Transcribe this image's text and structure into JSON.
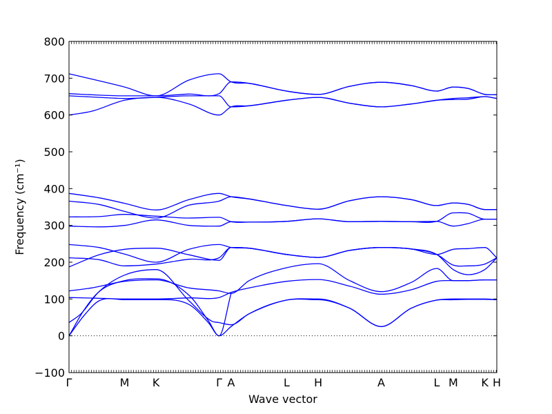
{
  "chart_data": {
    "type": "line",
    "title": "",
    "xlabel": "Wave vector",
    "ylabel": "Frequency (cm⁻¹)",
    "ylim": [
      -100,
      800
    ],
    "yticks": [
      -100,
      0,
      100,
      200,
      300,
      400,
      500,
      600,
      700,
      800
    ],
    "grid": false,
    "line_color": "#0000ff",
    "zero_line": {
      "y": 0,
      "style": "dotted",
      "color": "#000000"
    },
    "kpoints": [
      {
        "label": "Γ",
        "x": 0
      },
      {
        "label": "M",
        "x": 0.37
      },
      {
        "label": "K",
        "x": 0.58
      },
      {
        "label": "Γ",
        "x": 1.0
      },
      {
        "label": "A",
        "x": 1.08
      },
      {
        "label": "L",
        "x": 1.45
      },
      {
        "label": "H",
        "x": 1.66
      },
      {
        "label": "A",
        "x": 2.08
      },
      {
        "label": "L",
        "x": 2.45
      },
      {
        "label": "M",
        "x": 2.56
      },
      {
        "label": "K",
        "x": 2.77
      },
      {
        "label": "H",
        "x": 2.85
      }
    ],
    "series": [
      {
        "values": [
          [
            0,
            712
          ],
          [
            0.37,
            676
          ],
          [
            0.58,
            652
          ],
          [
            0.8,
            695
          ],
          [
            1.0,
            712
          ],
          [
            1.08,
            690
          ],
          [
            1.2,
            686
          ],
          [
            1.45,
            665
          ],
          [
            1.66,
            656
          ],
          [
            1.87,
            678
          ],
          [
            2.08,
            689
          ],
          [
            2.28,
            680
          ],
          [
            2.45,
            665
          ],
          [
            2.56,
            676
          ],
          [
            2.66,
            672
          ],
          [
            2.77,
            656
          ],
          [
            2.85,
            655
          ]
        ]
      },
      {
        "values": [
          [
            0,
            658
          ],
          [
            0.2,
            654
          ],
          [
            0.37,
            652
          ],
          [
            0.58,
            652
          ],
          [
            0.8,
            657
          ],
          [
            1.0,
            658
          ],
          [
            1.08,
            690
          ],
          [
            1.2,
            686
          ],
          [
            1.45,
            665
          ],
          [
            1.66,
            656
          ],
          [
            1.87,
            678
          ],
          [
            2.08,
            689
          ],
          [
            2.28,
            680
          ],
          [
            2.45,
            665
          ],
          [
            2.56,
            676
          ],
          [
            2.66,
            672
          ],
          [
            2.77,
            656
          ],
          [
            2.85,
            655
          ]
        ]
      },
      {
        "values": [
          [
            0,
            652
          ],
          [
            0.2,
            648
          ],
          [
            0.37,
            645
          ],
          [
            0.58,
            648
          ],
          [
            0.8,
            652
          ],
          [
            1.0,
            652
          ],
          [
            1.08,
            622
          ],
          [
            1.2,
            625
          ],
          [
            1.45,
            640
          ],
          [
            1.66,
            648
          ],
          [
            1.87,
            632
          ],
          [
            2.08,
            622
          ],
          [
            2.28,
            630
          ],
          [
            2.45,
            640
          ],
          [
            2.56,
            645
          ],
          [
            2.66,
            647
          ],
          [
            2.77,
            650
          ],
          [
            2.85,
            645
          ]
        ]
      },
      {
        "values": [
          [
            0,
            600
          ],
          [
            0.15,
            610
          ],
          [
            0.37,
            640
          ],
          [
            0.58,
            648
          ],
          [
            0.8,
            630
          ],
          [
            1.0,
            600
          ],
          [
            1.08,
            622
          ],
          [
            1.2,
            625
          ],
          [
            1.45,
            640
          ],
          [
            1.66,
            648
          ],
          [
            1.87,
            632
          ],
          [
            2.08,
            622
          ],
          [
            2.28,
            630
          ],
          [
            2.45,
            640
          ],
          [
            2.56,
            642
          ],
          [
            2.66,
            643
          ],
          [
            2.77,
            650
          ],
          [
            2.85,
            645
          ]
        ]
      },
      {
        "values": [
          [
            0,
            387
          ],
          [
            0.2,
            375
          ],
          [
            0.37,
            360
          ],
          [
            0.58,
            342
          ],
          [
            0.8,
            370
          ],
          [
            1.0,
            387
          ],
          [
            1.08,
            378
          ],
          [
            1.2,
            372
          ],
          [
            1.45,
            354
          ],
          [
            1.66,
            344
          ],
          [
            1.87,
            367
          ],
          [
            2.08,
            378
          ],
          [
            2.28,
            370
          ],
          [
            2.45,
            354
          ],
          [
            2.56,
            361
          ],
          [
            2.66,
            357
          ],
          [
            2.77,
            343
          ],
          [
            2.85,
            343
          ]
        ]
      },
      {
        "values": [
          [
            0,
            366
          ],
          [
            0.2,
            357
          ],
          [
            0.37,
            338
          ],
          [
            0.58,
            320
          ],
          [
            0.8,
            355
          ],
          [
            1.0,
            366
          ],
          [
            1.08,
            378
          ],
          [
            1.2,
            372
          ],
          [
            1.45,
            354
          ],
          [
            1.66,
            344
          ],
          [
            1.87,
            367
          ],
          [
            2.08,
            378
          ],
          [
            2.28,
            370
          ],
          [
            2.45,
            354
          ],
          [
            2.56,
            361
          ],
          [
            2.66,
            357
          ],
          [
            2.77,
            343
          ],
          [
            2.85,
            343
          ]
        ]
      },
      {
        "values": [
          [
            0,
            323
          ],
          [
            0.2,
            324
          ],
          [
            0.37,
            330
          ],
          [
            0.58,
            325
          ],
          [
            0.8,
            320
          ],
          [
            1.0,
            322
          ],
          [
            1.08,
            310
          ],
          [
            1.2,
            309
          ],
          [
            1.45,
            311
          ],
          [
            1.66,
            318
          ],
          [
            1.87,
            310
          ],
          [
            2.08,
            311
          ],
          [
            2.28,
            310
          ],
          [
            2.45,
            311
          ],
          [
            2.56,
            334
          ],
          [
            2.66,
            333
          ],
          [
            2.77,
            317
          ],
          [
            2.85,
            317
          ]
        ]
      },
      {
        "values": [
          [
            0,
            298
          ],
          [
            0.2,
            296
          ],
          [
            0.37,
            300
          ],
          [
            0.58,
            315
          ],
          [
            0.8,
            300
          ],
          [
            1.0,
            298
          ],
          [
            1.08,
            310
          ],
          [
            1.2,
            309
          ],
          [
            1.45,
            311
          ],
          [
            1.66,
            318
          ],
          [
            1.87,
            310
          ],
          [
            2.08,
            311
          ],
          [
            2.28,
            310
          ],
          [
            2.45,
            311
          ],
          [
            2.56,
            298
          ],
          [
            2.66,
            305
          ],
          [
            2.77,
            317
          ],
          [
            2.85,
            317
          ]
        ]
      },
      {
        "values": [
          [
            0,
            248
          ],
          [
            0.2,
            240
          ],
          [
            0.37,
            222
          ],
          [
            0.58,
            200
          ],
          [
            0.8,
            235
          ],
          [
            1.0,
            248
          ],
          [
            1.08,
            240
          ],
          [
            1.2,
            238
          ],
          [
            1.45,
            221
          ],
          [
            1.66,
            213
          ],
          [
            1.87,
            232
          ],
          [
            2.08,
            240
          ],
          [
            2.28,
            236
          ],
          [
            2.45,
            221
          ],
          [
            2.56,
            235
          ],
          [
            2.66,
            237
          ],
          [
            2.77,
            240
          ],
          [
            2.85,
            212
          ]
        ]
      },
      {
        "values": [
          [
            0,
            212
          ],
          [
            0.2,
            207
          ],
          [
            0.37,
            190
          ],
          [
            0.58,
            195
          ],
          [
            0.8,
            208
          ],
          [
            1.0,
            212
          ],
          [
            1.08,
            240
          ],
          [
            1.2,
            238
          ],
          [
            1.45,
            221
          ],
          [
            1.66,
            213
          ],
          [
            1.87,
            232
          ],
          [
            2.08,
            240
          ],
          [
            2.28,
            236
          ],
          [
            2.45,
            221
          ],
          [
            2.56,
            192
          ],
          [
            2.66,
            190
          ],
          [
            2.77,
            195
          ],
          [
            2.85,
            212
          ]
        ]
      },
      {
        "values": [
          [
            0,
            187
          ],
          [
            0.2,
            220
          ],
          [
            0.37,
            235
          ],
          [
            0.58,
            238
          ],
          [
            0.8,
            220
          ],
          [
            1.0,
            205
          ],
          [
            1.08,
            240
          ],
          [
            1.2,
            238
          ],
          [
            1.45,
            221
          ],
          [
            1.66,
            213
          ],
          [
            1.87,
            232
          ],
          [
            2.08,
            240
          ],
          [
            2.28,
            236
          ],
          [
            2.45,
            221
          ],
          [
            2.56,
            180
          ],
          [
            2.66,
            166
          ],
          [
            2.77,
            180
          ],
          [
            2.85,
            212
          ]
        ]
      },
      {
        "values": [
          [
            0,
            122
          ],
          [
            0.15,
            130
          ],
          [
            0.37,
            148
          ],
          [
            0.58,
            152
          ],
          [
            0.8,
            130
          ],
          [
            1.0,
            122
          ],
          [
            1.08,
            115
          ],
          [
            1.2,
            150
          ],
          [
            1.45,
            185
          ],
          [
            1.66,
            196
          ],
          [
            1.87,
            150
          ],
          [
            2.08,
            120
          ],
          [
            2.28,
            145
          ],
          [
            2.45,
            183
          ],
          [
            2.56,
            150
          ],
          [
            2.66,
            150
          ],
          [
            2.77,
            152
          ],
          [
            2.85,
            152
          ]
        ]
      },
      {
        "values": [
          [
            0,
            104
          ],
          [
            0.2,
            102
          ],
          [
            0.37,
            100
          ],
          [
            0.58,
            100
          ],
          [
            0.8,
            103
          ],
          [
            1.0,
            104
          ],
          [
            1.08,
            118
          ],
          [
            1.2,
            130
          ],
          [
            1.45,
            148
          ],
          [
            1.66,
            153
          ],
          [
            1.87,
            135
          ],
          [
            2.08,
            113
          ],
          [
            2.28,
            125
          ],
          [
            2.45,
            148
          ],
          [
            2.56,
            150
          ],
          [
            2.66,
            150
          ],
          [
            2.77,
            152
          ],
          [
            2.85,
            152
          ]
        ]
      },
      {
        "values": [
          [
            0,
            36
          ],
          [
            0.08,
            60
          ],
          [
            0.2,
            120
          ],
          [
            0.37,
            165
          ],
          [
            0.58,
            180
          ],
          [
            0.8,
            95
          ],
          [
            0.95,
            40
          ],
          [
            1.0,
            36
          ],
          [
            1.08,
            30
          ],
          [
            1.2,
            60
          ],
          [
            1.45,
            97
          ],
          [
            1.66,
            100
          ],
          [
            1.87,
            75
          ],
          [
            2.08,
            25
          ],
          [
            2.28,
            75
          ],
          [
            2.45,
            97
          ],
          [
            2.56,
            100
          ],
          [
            2.66,
            100
          ],
          [
            2.77,
            100
          ],
          [
            2.85,
            98
          ]
        ]
      },
      {
        "values": [
          [
            0,
            0
          ],
          [
            0.1,
            70
          ],
          [
            0.2,
            120
          ],
          [
            0.37,
            150
          ],
          [
            0.58,
            155
          ],
          [
            0.8,
            110
          ],
          [
            0.93,
            40
          ],
          [
            1.0,
            0
          ],
          [
            1.08,
            115
          ]
        ]
      },
      {
        "values": [
          [
            0,
            0
          ],
          [
            0.1,
            55
          ],
          [
            0.2,
            95
          ],
          [
            0.37,
            98
          ],
          [
            0.58,
            98
          ],
          [
            0.8,
            85
          ],
          [
            0.93,
            35
          ],
          [
            1.0,
            0
          ],
          [
            1.08,
            25
          ],
          [
            1.2,
            60
          ],
          [
            1.45,
            97
          ],
          [
            1.66,
            98
          ],
          [
            1.87,
            75
          ],
          [
            2.08,
            25
          ],
          [
            2.28,
            75
          ],
          [
            2.45,
            97
          ],
          [
            2.56,
            98
          ],
          [
            2.66,
            99
          ],
          [
            2.77,
            99
          ],
          [
            2.85,
            98
          ]
        ]
      }
    ]
  }
}
